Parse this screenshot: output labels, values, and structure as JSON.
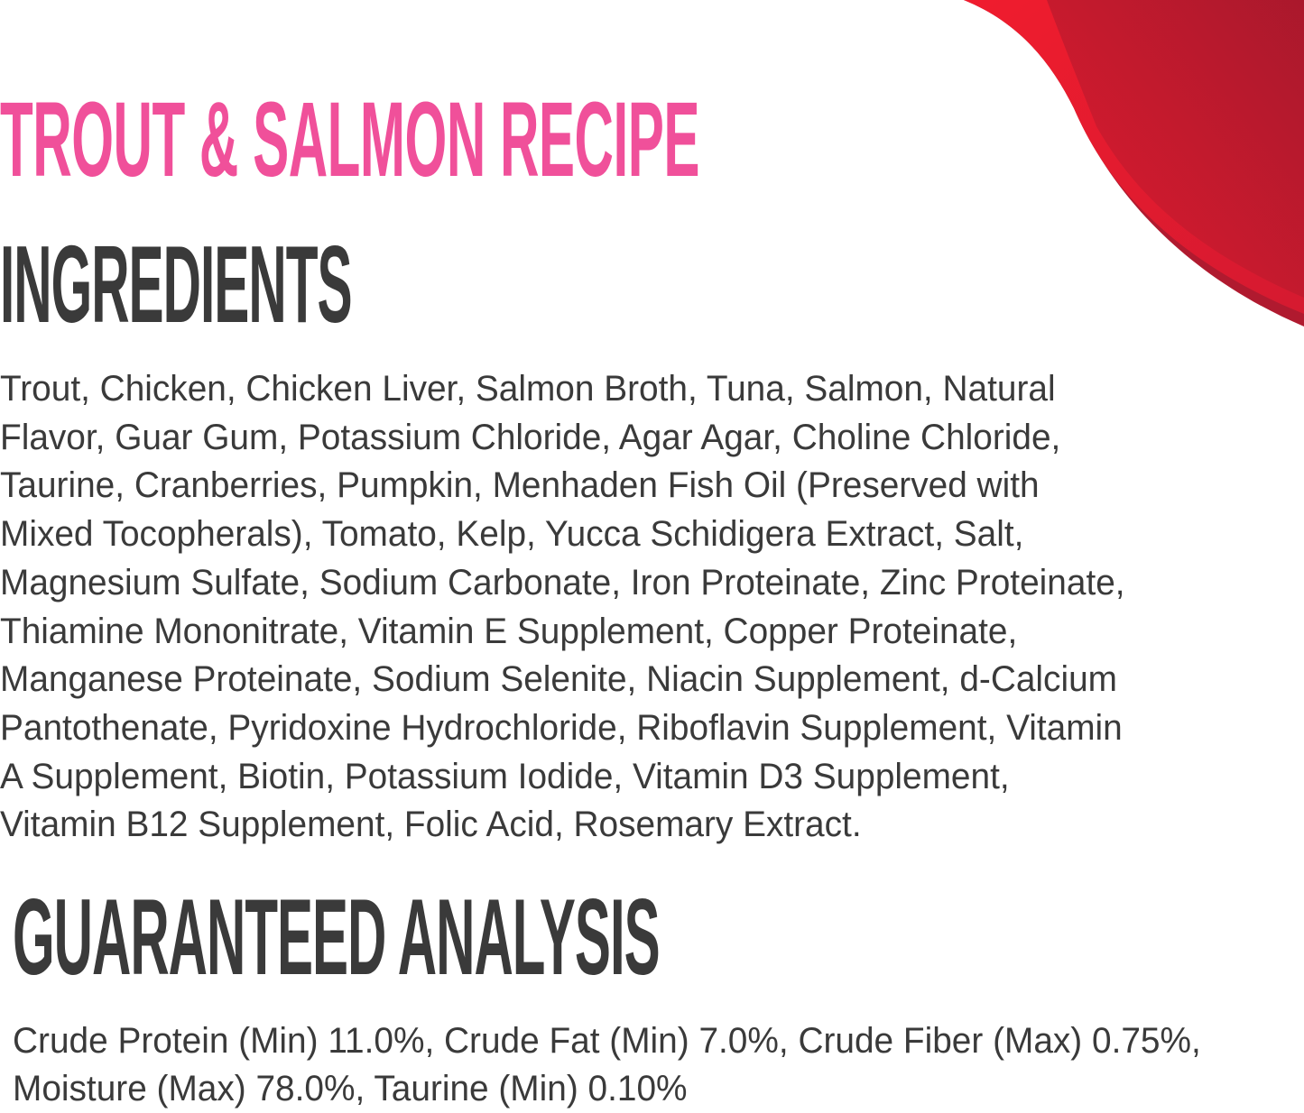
{
  "colors": {
    "title": "#f0509a",
    "heading": "#3a3a3a",
    "text": "#3a3a3a",
    "swoosh_light": "#ec1c2d",
    "swoosh_dark": "#a31a2e"
  },
  "title": "TROUT & SALMON RECIPE",
  "ingredients": {
    "heading": "INGREDIENTS",
    "lines": [
      "Trout, Chicken, Chicken Liver, Salmon Broth, Tuna, Salmon, Natural",
      "Flavor, Guar Gum, Potassium Chloride,  Agar Agar, Choline Chloride,",
      "Taurine, Cranberries, Pumpkin, Menhaden Fish Oil (Preserved with",
      "Mixed Tocopherals), Tomato, Kelp, Yucca Schidigera Extract, Salt,",
      "Magnesium Sulfate, Sodium Carbonate, Iron Proteinate, Zinc Proteinate,",
      "Thiamine Mononitrate, Vitamin E Supplement, Copper Proteinate,",
      "Manganese Proteinate, Sodium Selenite, Niacin Supplement, d-Calcium",
      "Pantothenate, Pyridoxine Hydrochloride, Riboflavin Supplement, Vitamin",
      "A Supplement, Biotin, Potassium Iodide, Vitamin D3 Supplement,",
      "Vitamin B12 Supplement, Folic Acid, Rosemary Extract."
    ]
  },
  "analysis": {
    "heading": "GUARANTEED ANALYSIS",
    "lines": [
      "Crude Protein (Min) 11.0%, Crude Fat (Min) 7.0%, Crude Fiber (Max) 0.75%,",
      "Moisture (Max) 78.0%, Taurine (Min) 0.10%"
    ]
  }
}
